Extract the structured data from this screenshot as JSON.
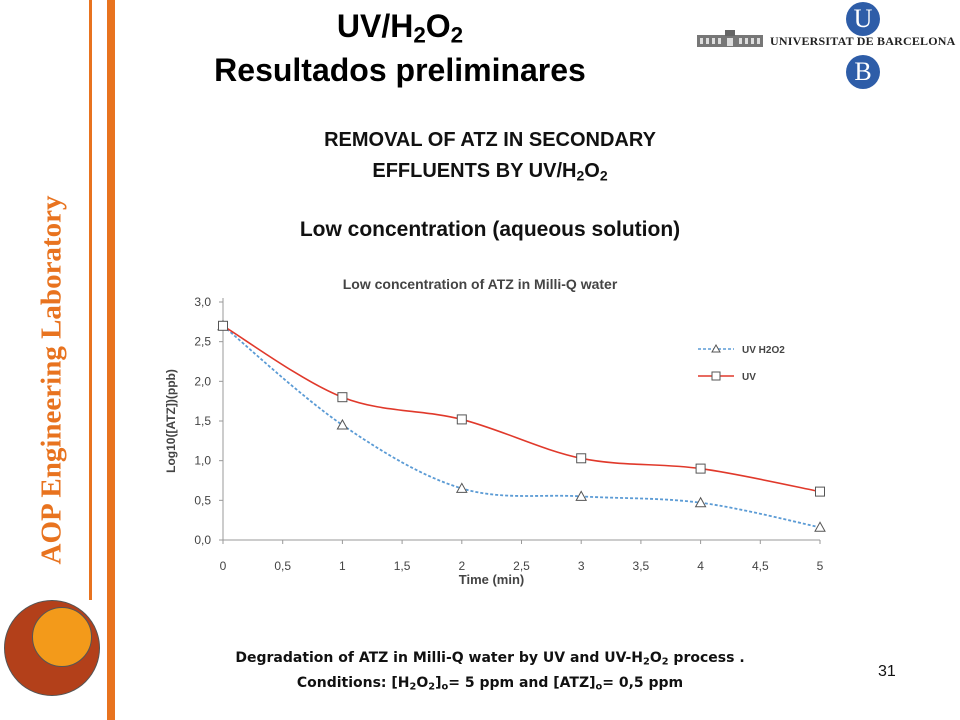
{
  "slide": {
    "title_line1_main": "UV/H",
    "title_line1_sub1": "2",
    "title_line1_mid": "O",
    "title_line1_sub2": "2",
    "title_line2": "Resultados preliminares",
    "heading_line1": "REMOVAL OF ATZ IN SECONDARY",
    "heading_line2_main": "EFFLUENTS BY UV/H",
    "heading_line2_sub1": "2",
    "heading_line2_mid": "O",
    "heading_line2_sub2": "2",
    "subheading": "Low concentration  (aqueous solution)",
    "side_label": "AOP Engineering Laboratory",
    "logo_text": "UNIVERSITAT DE BARCELONA",
    "logo_u": "U",
    "logo_b": "B",
    "page_number": "31",
    "caption_line1_a": "Degradation of ATZ in Milli-Q water by UV and UV-H",
    "caption_line1_sub1": "2",
    "caption_line1_b": "O",
    "caption_line1_sub2": "2",
    "caption_line1_c": " process .",
    "caption_line2_a": "Conditions:  [H",
    "caption_line2_sub1": "2",
    "caption_line2_b": "O",
    "caption_line2_sub2": "2",
    "caption_line2_c": "]",
    "caption_line2_sub3": "o",
    "caption_line2_d": "= 5 ppm and [ATZ]",
    "caption_line2_sub4": "o",
    "caption_line2_e": "= 0,5 ppm",
    "accent_color": "#e8731f"
  },
  "chart_data": {
    "type": "line",
    "title": "Low concentration of ATZ in Milli-Q water",
    "xlabel": "Time (min)",
    "ylabel": "Log10([ATZ])(ppb)",
    "xlim": [
      0,
      5
    ],
    "ylim": [
      0,
      3
    ],
    "x_ticks": [
      "0",
      "0,5",
      "1",
      "1,5",
      "2",
      "2,5",
      "3",
      "3,5",
      "4",
      "4,5",
      "5"
    ],
    "y_ticks": [
      "0,0",
      "0,5",
      "1,0",
      "1,5",
      "2,0",
      "2,5",
      "3,0"
    ],
    "grid": false,
    "legend_position": "right",
    "series": [
      {
        "name": "UV H2O2",
        "color": "#5b9bd5",
        "line_style": "dotted",
        "marker": "triangle",
        "x": [
          0,
          1,
          2,
          3,
          4,
          5
        ],
        "y": [
          2.7,
          1.45,
          0.65,
          0.55,
          0.47,
          0.16
        ]
      },
      {
        "name": "UV",
        "color": "#e0392b",
        "line_style": "solid",
        "marker": "square",
        "x": [
          0,
          1,
          2,
          3,
          4,
          5
        ],
        "y": [
          2.7,
          1.8,
          1.52,
          1.03,
          0.9,
          0.61
        ]
      }
    ]
  }
}
